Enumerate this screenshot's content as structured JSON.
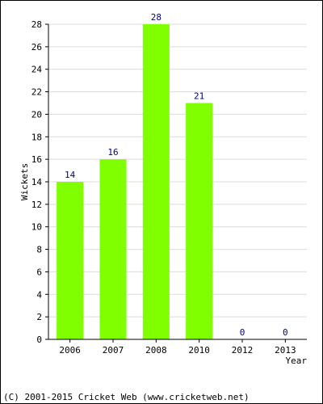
{
  "chart_data": {
    "type": "bar",
    "categories": [
      "2006",
      "2007",
      "2008",
      "2010",
      "2012",
      "2013"
    ],
    "values": [
      14,
      16,
      28,
      21,
      0,
      0
    ],
    "title": "",
    "xlabel": "Year",
    "ylabel": "Wickets",
    "ylim": [
      0,
      28
    ],
    "yticks": [
      0,
      2,
      4,
      6,
      8,
      10,
      12,
      14,
      16,
      18,
      20,
      22,
      24,
      26,
      28
    ],
    "grid": true,
    "bar_color": "#7FFF00",
    "label_color": "#000080"
  },
  "footer": "(C) 2001-2015 Cricket Web (www.cricketweb.net)"
}
